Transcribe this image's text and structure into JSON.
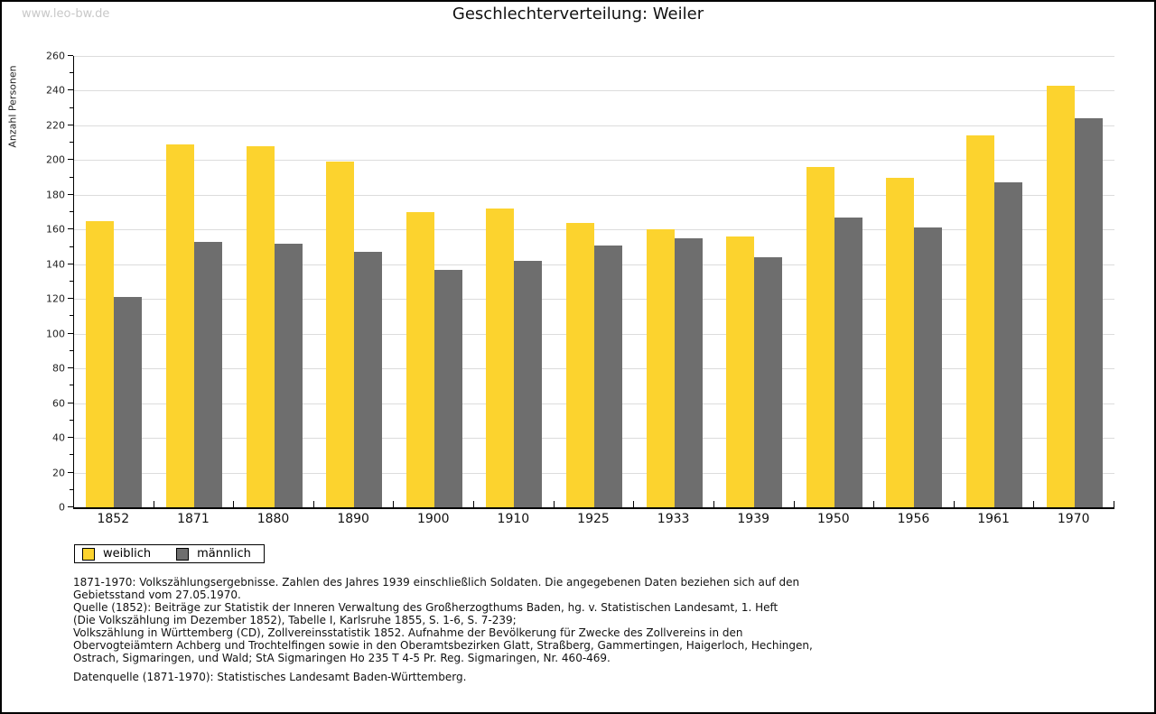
{
  "watermark": "www.leo-bw.de",
  "title": "Geschlechterverteilung: Weiler",
  "chart_data": {
    "type": "bar",
    "title": "Geschlechterverteilung: Weiler",
    "categories": [
      "1852",
      "1871",
      "1880",
      "1890",
      "1900",
      "1910",
      "1925",
      "1933",
      "1939",
      "1950",
      "1956",
      "1961",
      "1970"
    ],
    "series": [
      {
        "name": "weiblich",
        "color": "#FCD32E",
        "values": [
          165,
          209,
          208,
          199,
          170,
          172,
          164,
          160,
          156,
          196,
          190,
          214,
          243
        ]
      },
      {
        "name": "männlich",
        "color": "#6E6E6E",
        "values": [
          121,
          153,
          152,
          147,
          137,
          142,
          151,
          155,
          144,
          167,
          161,
          187,
          224
        ]
      }
    ],
    "xlabel": "",
    "ylabel": "Anzahl Personen",
    "ylim": [
      0,
      260
    ],
    "ytick_step": 20,
    "yminor_step": 10,
    "grid": true,
    "gridline_color": "#dcdcdc",
    "legend_position": "bottom-left"
  },
  "footer": {
    "lines": [
      "1871-1970: Volkszählungsergebnisse. Zahlen des Jahres 1939 einschließlich Soldaten. Die angegebenen Daten beziehen sich auf den",
      "Gebietsstand vom 27.05.1970.",
      "Quelle (1852): Beiträge zur Statistik der Inneren Verwaltung des Großherzogthums Baden, hg. v. Statistischen Landesamt, 1. Heft",
      "(Die Volkszählung im Dezember 1852), Tabelle I, Karlsruhe 1855, S. 1-6, S. 7-239;",
      "Volkszählung in Württemberg (CD), Zollvereinsstatistik 1852. Aufnahme der Bevölkerung für Zwecke des Zollvereins in den",
      "Obervogteiämtern Achberg und Trochtelfingen sowie in den Oberamtsbezirken Glatt, Straßberg, Gammertingen, Haigerloch, Hechingen,",
      "Ostrach, Sigmaringen, und Wald; StA Sigmaringen Ho 235 T 4-5 Pr. Reg. Sigmaringen, Nr. 460-469."
    ],
    "datasource": "Datenquelle (1871-1970): Statistisches Landesamt Baden-Württemberg."
  }
}
